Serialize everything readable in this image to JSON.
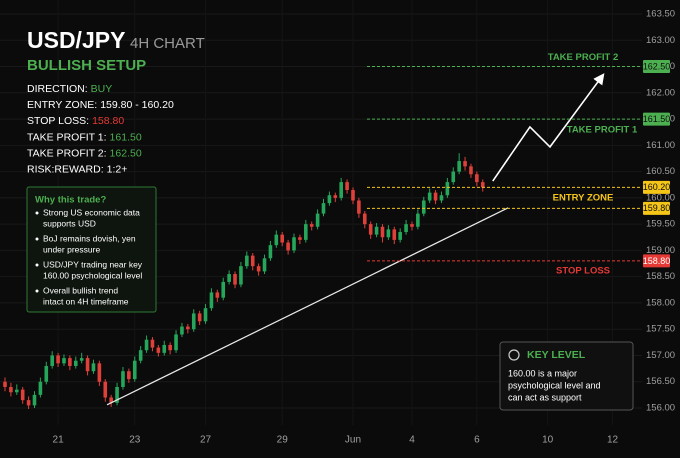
{
  "chart_data": {
    "type": "candlestick",
    "title": "USD/JPY",
    "subtitle": "4H CHART",
    "setup_title": "BULLISH SETUP",
    "setup": [
      {
        "label": "DIRECTION:",
        "value": "BUY",
        "color": "#4caf50"
      },
      {
        "label": "ENTRY ZONE:",
        "value": "159.80 - 160.20",
        "color": "#ffffff"
      },
      {
        "label": "STOP LOSS:",
        "value": "158.80",
        "color": "#e53935"
      },
      {
        "label": "TAKE PROFIT 1:",
        "value": "161.50",
        "color": "#4caf50"
      },
      {
        "label": "TAKE PROFIT 2:",
        "value": "162.50",
        "color": "#4caf50"
      },
      {
        "label": "RISK:REWARD:",
        "value": "1:2+",
        "color": "#ffffff"
      }
    ],
    "why": {
      "title": "Why this trade?",
      "bullets": [
        [
          "Strong US economic data",
          "supports USD"
        ],
        [
          "BoJ remains dovish, yen",
          "under pressure"
        ],
        [
          "USD/JPY trading near key",
          "160.00 psychological level"
        ],
        [
          "Overall bullish trend",
          "intact on 4H timeframe"
        ]
      ]
    },
    "key_level": {
      "title": "KEY LEVEL",
      "lines": [
        "160.00 is a major",
        "psychological level and",
        "can act as support"
      ]
    },
    "up_color": "#26a65b",
    "down_color": "#e0403a",
    "grid": true,
    "ylim": [
      156,
      163.5
    ],
    "yticks": [
      {
        "value": 156,
        "label": "156.00"
      },
      {
        "value": 156.5,
        "label": "156.50"
      },
      {
        "value": 157,
        "label": "157.00"
      },
      {
        "value": 157.5,
        "label": "157.50"
      },
      {
        "value": 158,
        "label": "158.00"
      },
      {
        "value": 158.5,
        "label": "158.50"
      },
      {
        "value": 159,
        "label": "159.00"
      },
      {
        "value": 159.5,
        "label": "159.50"
      },
      {
        "value": 160,
        "label": "160.00"
      },
      {
        "value": 160.5,
        "label": "160.50"
      },
      {
        "value": 161,
        "label": "161.00"
      },
      {
        "value": 161.5,
        "label": "161.50"
      },
      {
        "value": 162,
        "label": "162.00"
      },
      {
        "value": 162.5,
        "label": "162.50"
      },
      {
        "value": 163,
        "label": "163.00"
      },
      {
        "value": 163.5,
        "label": "163.50"
      }
    ],
    "xlim": [
      0,
      108
    ],
    "xticks": [
      {
        "value": 9,
        "label": "21"
      },
      {
        "value": 22,
        "label": "23"
      },
      {
        "value": 34,
        "label": "27"
      },
      {
        "value": 47,
        "label": "29"
      },
      {
        "value": 59,
        "label": "Jun"
      },
      {
        "value": 69,
        "label": "4"
      },
      {
        "value": 80,
        "label": "6"
      },
      {
        "value": 92,
        "label": "10"
      },
      {
        "value": 103,
        "label": "12"
      }
    ],
    "ohlc": [
      [
        156.5,
        156.58,
        156.32,
        156.4
      ],
      [
        156.4,
        156.48,
        156.22,
        156.3
      ],
      [
        156.3,
        156.45,
        156.25,
        156.35
      ],
      [
        156.35,
        156.4,
        156.08,
        156.15
      ],
      [
        156.15,
        156.22,
        155.98,
        156.05
      ],
      [
        156.05,
        156.32,
        156.0,
        156.25
      ],
      [
        156.25,
        156.58,
        156.2,
        156.5
      ],
      [
        156.5,
        156.88,
        156.45,
        156.8
      ],
      [
        156.8,
        157.08,
        156.75,
        157.0
      ],
      [
        157.0,
        157.05,
        156.78,
        156.85
      ],
      [
        156.85,
        157.02,
        156.8,
        156.95
      ],
      [
        156.95,
        157.0,
        156.72,
        156.8
      ],
      [
        156.8,
        156.98,
        156.75,
        156.9
      ],
      [
        156.9,
        157.05,
        156.85,
        156.95
      ],
      [
        156.95,
        157.0,
        156.62,
        156.7
      ],
      [
        156.7,
        156.92,
        156.65,
        156.85
      ],
      [
        156.85,
        156.9,
        156.42,
        156.5
      ],
      [
        156.5,
        156.55,
        156.12,
        156.2
      ],
      [
        156.2,
        156.25,
        156.02,
        156.1
      ],
      [
        156.1,
        156.48,
        156.05,
        156.4
      ],
      [
        156.4,
        156.78,
        156.35,
        156.7
      ],
      [
        156.7,
        156.75,
        156.48,
        156.55
      ],
      [
        156.55,
        156.98,
        156.5,
        156.9
      ],
      [
        156.9,
        157.18,
        156.85,
        157.1
      ],
      [
        157.1,
        157.38,
        157.05,
        157.3
      ],
      [
        157.3,
        157.35,
        157.08,
        157.15
      ],
      [
        157.15,
        157.2,
        156.98,
        157.05
      ],
      [
        157.05,
        157.28,
        157.0,
        157.2
      ],
      [
        157.2,
        157.25,
        157.02,
        157.1
      ],
      [
        157.1,
        157.48,
        157.05,
        157.4
      ],
      [
        157.4,
        157.62,
        157.35,
        157.55
      ],
      [
        157.55,
        157.6,
        157.42,
        157.5
      ],
      [
        157.5,
        157.88,
        157.45,
        157.8
      ],
      [
        157.8,
        157.85,
        157.58,
        157.65
      ],
      [
        157.65,
        157.98,
        157.6,
        157.9
      ],
      [
        157.9,
        158.28,
        157.85,
        158.2
      ],
      [
        158.2,
        158.25,
        158.02,
        158.1
      ],
      [
        158.1,
        158.48,
        158.05,
        158.4
      ],
      [
        158.4,
        158.62,
        158.35,
        158.55
      ],
      [
        158.55,
        158.6,
        158.28,
        158.35
      ],
      [
        158.35,
        158.78,
        158.3,
        158.7
      ],
      [
        158.7,
        158.98,
        158.65,
        158.9
      ],
      [
        158.9,
        158.95,
        158.62,
        158.7
      ],
      [
        158.7,
        158.75,
        158.52,
        158.6
      ],
      [
        158.6,
        158.92,
        158.55,
        158.85
      ],
      [
        158.85,
        159.18,
        158.8,
        159.1
      ],
      [
        159.1,
        159.38,
        159.05,
        159.3
      ],
      [
        159.3,
        159.35,
        159.08,
        159.15
      ],
      [
        159.15,
        159.2,
        158.92,
        159.0
      ],
      [
        159.0,
        159.32,
        158.95,
        159.25
      ],
      [
        159.25,
        159.3,
        159.12,
        159.2
      ],
      [
        159.2,
        159.58,
        159.15,
        159.5
      ],
      [
        159.5,
        159.55,
        159.38,
        159.45
      ],
      [
        159.45,
        159.78,
        159.4,
        159.7
      ],
      [
        159.7,
        159.98,
        159.65,
        159.9
      ],
      [
        159.9,
        160.12,
        159.85,
        160.05
      ],
      [
        160.05,
        160.1,
        159.92,
        160.0
      ],
      [
        160.0,
        160.38,
        159.95,
        160.3
      ],
      [
        160.3,
        160.35,
        160.08,
        160.15
      ],
      [
        160.15,
        160.2,
        159.88,
        159.95
      ],
      [
        159.95,
        160.0,
        159.62,
        159.7
      ],
      [
        159.7,
        159.75,
        159.42,
        159.5
      ],
      [
        159.5,
        159.55,
        159.22,
        159.3
      ],
      [
        159.3,
        159.52,
        159.25,
        159.45
      ],
      [
        159.45,
        159.5,
        159.15,
        159.25
      ],
      [
        159.25,
        159.48,
        159.2,
        159.4
      ],
      [
        159.4,
        159.45,
        159.12,
        159.2
      ],
      [
        159.2,
        159.42,
        159.15,
        159.35
      ],
      [
        159.35,
        159.58,
        159.3,
        159.5
      ],
      [
        159.5,
        159.55,
        159.38,
        159.45
      ],
      [
        159.45,
        159.78,
        159.4,
        159.7
      ],
      [
        159.7,
        160.02,
        159.65,
        159.95
      ],
      [
        159.95,
        160.18,
        159.9,
        160.1
      ],
      [
        160.1,
        160.15,
        159.88,
        159.95
      ],
      [
        159.95,
        160.12,
        159.9,
        160.05
      ],
      [
        160.05,
        160.38,
        160.0,
        160.3
      ],
      [
        160.3,
        160.58,
        160.25,
        160.5
      ],
      [
        160.5,
        160.85,
        160.45,
        160.7
      ],
      [
        160.7,
        160.78,
        160.52,
        160.6
      ],
      [
        160.6,
        160.65,
        160.38,
        160.45
      ],
      [
        160.45,
        160.5,
        160.22,
        160.3
      ],
      [
        160.3,
        160.35,
        160.12,
        160.2
      ]
    ],
    "levels": [
      {
        "name": "TAKE PROFIT 2",
        "color": "#4caf50",
        "values": [
          162.5
        ],
        "value_labels": [
          "162.50"
        ]
      },
      {
        "name": "TAKE PROFIT 1",
        "color": "#4caf50",
        "values": [
          161.5
        ],
        "value_labels": [
          "161.50"
        ]
      },
      {
        "name": "ENTRY ZONE",
        "color": "#f5c518",
        "values": [
          160.2,
          159.8
        ],
        "value_labels": [
          "160.20",
          "159.80"
        ]
      },
      {
        "name": "STOP LOSS",
        "color": "#e53935",
        "values": [
          158.8
        ],
        "value_labels": [
          "158.80"
        ]
      }
    ],
    "trendline": {
      "x": [
        17.3,
        85.3
      ],
      "y": [
        156.06,
        159.81
      ]
    },
    "projection": {
      "x": [
        82.7,
        89.0,
        92.4,
        101.4
      ],
      "y": [
        160.32,
        161.35,
        160.97,
        162.34
      ]
    }
  }
}
